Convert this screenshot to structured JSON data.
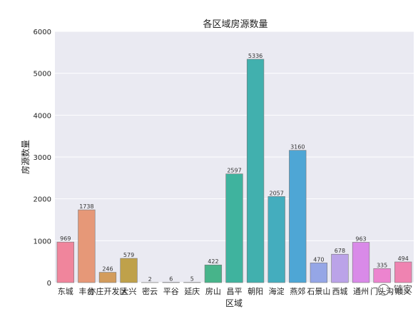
{
  "chart_data": {
    "type": "bar",
    "title": "各区域房源数量",
    "xlabel": "区域",
    "ylabel": "房源数量",
    "ylim": [
      0,
      6000
    ],
    "yticks": [
      "0",
      "1000",
      "2000",
      "3000",
      "4000",
      "5000",
      "6000"
    ],
    "grid": true,
    "categories": [
      "东城",
      "丰台",
      "亦庄开发区",
      "大兴",
      "密云",
      "平谷",
      "延庆",
      "房山",
      "昌平",
      "朝阳",
      "海淀",
      "燕郊",
      "石景山",
      "西城",
      "通州",
      "门头沟",
      "顺义"
    ],
    "values": [
      969,
      1738,
      246,
      579,
      2,
      6,
      5,
      422,
      2597,
      5336,
      2057,
      3160,
      470,
      678,
      963,
      335,
      494
    ],
    "value_labels": [
      "969",
      "1738",
      "246",
      "579",
      "2",
      "6",
      "5",
      "422",
      "2597",
      "5336",
      "2057",
      "3160",
      "470",
      "678",
      "963",
      "335",
      "494"
    ],
    "colors": [
      "#f0859c",
      "#e69878",
      "#d39c5c",
      "#bfa14a",
      "#a7a74a",
      "#8eae4f",
      "#5ab55a",
      "#47b48a",
      "#3fb39e",
      "#41b0ae",
      "#44adbe",
      "#4ea6d5",
      "#95a6e6",
      "#bba3e8",
      "#d98ae8",
      "#ec84cf",
      "#ef83b1"
    ]
  },
  "watermark": {
    "text": "链家"
  }
}
